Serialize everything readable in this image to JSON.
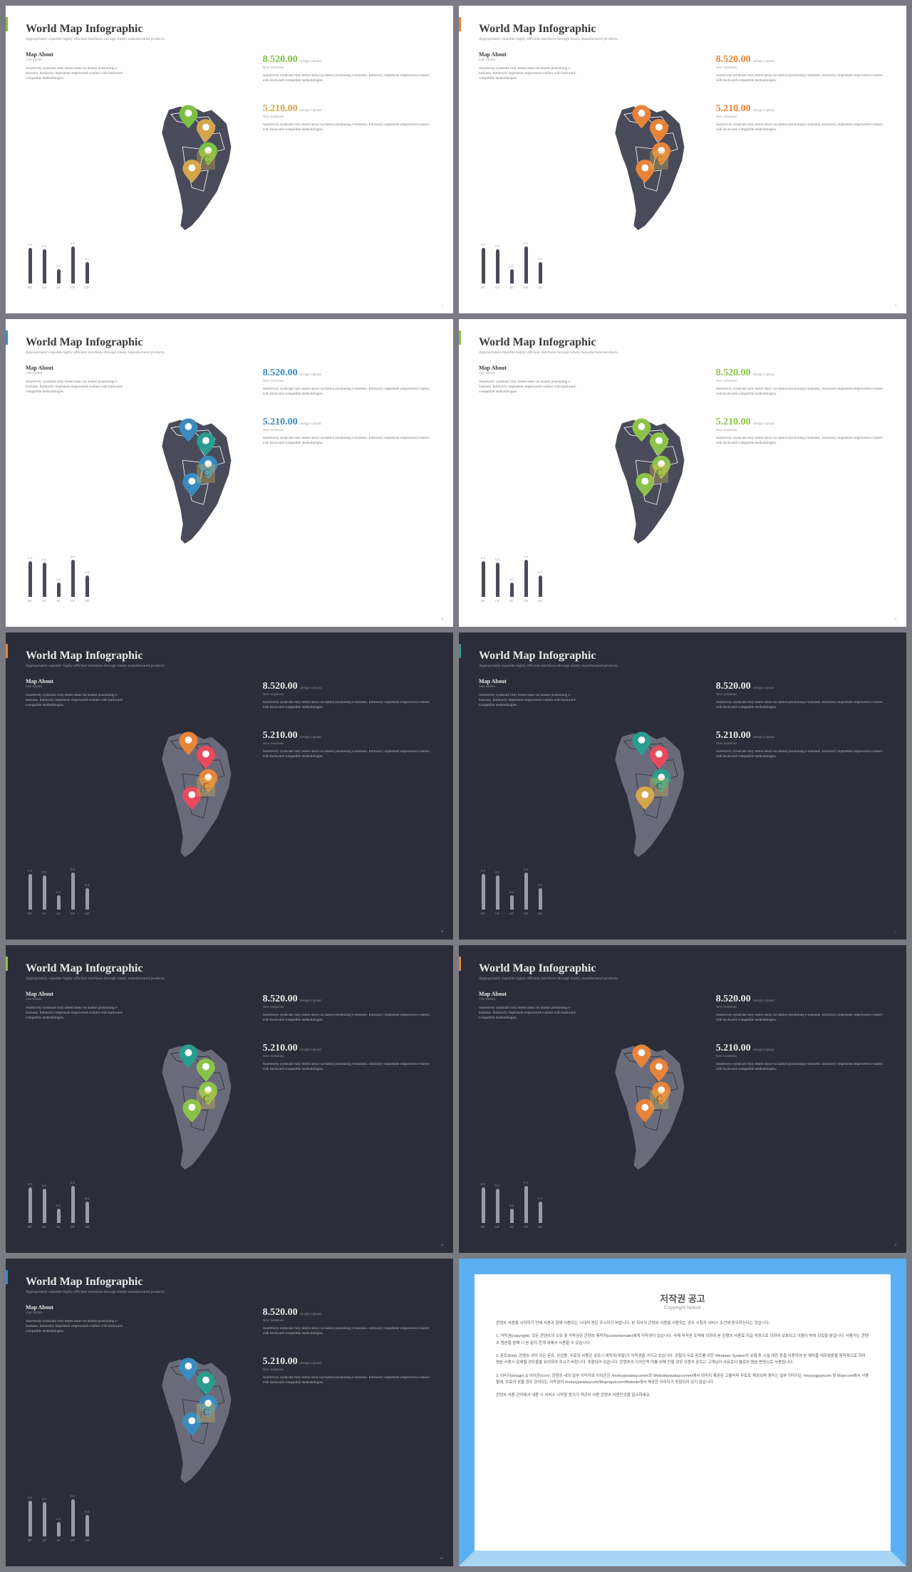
{
  "common": {
    "title": "World Map Infographic",
    "subtitle": "Appropriately expedite highly efficient interfaces through timely manufactured products.",
    "map_about": "Map About",
    "map_about_sub": "One Month",
    "map_desc": "Assertively syndicate fully tested ideas via market positioning e-business. Intrinsicly implement empowered e-tailers with backward-compatible methodologies.",
    "chart": {
      "labels": [
        "HT",
        "GF",
        "KJ",
        "UP",
        "GD"
      ],
      "values": [
        0.5,
        0.5,
        0.2,
        0.5,
        0.3
      ],
      "heights": [
        50,
        48,
        20,
        52,
        30
      ]
    },
    "stat1": {
      "num": "8.520.00",
      "lbl": "Design Upload"
    },
    "stat2": {
      "num": "5.210.00",
      "lbl": "Design Upload"
    },
    "stat_desc": "Assertively syndicate fully tested ideas via market positioning e-business. Intrinsicly implement empowered e-tailers with backward-compatible methodologies.",
    "sub_alt": "New Solutions"
  },
  "slides": [
    {
      "theme": "light",
      "accent": "#7bc043",
      "s1c": "#7bc043",
      "s2c": "#d4a54a",
      "pins": [
        "#7bc043",
        "#d4a54a",
        "#7bc043",
        "#d4a54a"
      ],
      "sub1": "New Solutions",
      "sub2": "New Solutions",
      "page": "5"
    },
    {
      "theme": "light",
      "accent": "#e8833a",
      "s1c": "#e8833a",
      "s2c": "#e8833a",
      "pins": [
        "#e8833a",
        "#e8833a",
        "#e8833a",
        "#e8833a"
      ],
      "sub1": "New Solutions",
      "sub2": "New Solutions",
      "page": "3"
    },
    {
      "theme": "light",
      "accent": "#3a8bbf",
      "s1c": "#3a8bbf",
      "s2c": "#3a8bbf",
      "pins": [
        "#3a8bbf",
        "#2a9d8f",
        "#3a8bbf",
        "#3a8bbf"
      ],
      "sub1": "New Solutions",
      "sub2": "New Solutions",
      "page": "4"
    },
    {
      "theme": "light",
      "accent": "#8bc34a",
      "s1c": "#8bc34a",
      "s2c": "#8bc34a",
      "pins": [
        "#8bc34a",
        "#8bc34a",
        "#8bc34a",
        "#8bc34a"
      ],
      "sub1": "New Solutions",
      "sub2": "New Solutions",
      "page": "3"
    },
    {
      "theme": "dark",
      "accent": "#e8833a",
      "s1c": "#e8e8e8",
      "s2c": "#e8e8e8",
      "pins": [
        "#e8833a",
        "#e84a5f",
        "#e8833a",
        "#e84a5f"
      ],
      "sub1": "New Solutions",
      "sub2": "New Solutions",
      "page": "8"
    },
    {
      "theme": "dark",
      "accent": "#2a9d8f",
      "s1c": "#e8e8e8",
      "s2c": "#e8e8e8",
      "pins": [
        "#2a9d8f",
        "#e84a5f",
        "#2a9d8f",
        "#d4a54a"
      ],
      "sub1": "New Solutions",
      "sub2": "New Solutions",
      "page": "7"
    },
    {
      "theme": "dark",
      "accent": "#8bc34a",
      "s1c": "#e8e8e8",
      "s2c": "#e8e8e8",
      "pins": [
        "#2a9d8f",
        "#8bc34a",
        "#8bc34a",
        "#8bc34a"
      ],
      "sub1": "New Solutions",
      "sub2": "New Solutions",
      "page": "8"
    },
    {
      "theme": "dark",
      "accent": "#e8833a",
      "s1c": "#e8e8e8",
      "s2c": "#e8e8e8",
      "pins": [
        "#e8833a",
        "#e8833a",
        "#e8833a",
        "#e8833a"
      ],
      "sub1": "New Solutions",
      "sub2": "New Solutions",
      "page": "9"
    },
    {
      "theme": "dark",
      "accent": "#3a8bbf",
      "s1c": "#e8e8e8",
      "s2c": "#e8e8e8",
      "pins": [
        "#3a8bbf",
        "#2a9d8f",
        "#3a8bbf",
        "#3a8bbf"
      ],
      "sub1": "New Solutions",
      "sub2": "New Solutions",
      "page": "10"
    }
  ],
  "notice": {
    "title": "저작권 공고",
    "en": "Copyright Notice",
    "p1": "콘텐츠 사용을 시작하기 전에 사용과 함께 사용되는 시대적 원은 주시하기 바랍니다. 본 회사의 콘텐츠 사용을 이용하는 경우 시청자 서비스 조건에 동의하신다는 것입니다.",
    "p2": "1. 저작권(copyright). 모든 콘텐츠의 소유 및 저작권은 콘텐츠 제작자(contentsmate)에게 저작권이 있습니다. 국제 저작권 조약에 의하여 본 콘텐츠 사용료 지급 미정으로 의하여 보호되고 이용이 허여 되었을 뿐입니다. 사용자는 콘텐츠 원본을 분해 시 본 문의 한계 내에서 사용할 수 있습니다.",
    "p3": "2. 폰트(font). 콘텐츠 내의 모든 폰트, 상업용, 무료의 사용은 공모시 제작자(개발)가 저작권을 가지고 있습니다. 관철의 무료 폰트를 위한 Windows System의 유형 등 시설 대한 등을 이용하여 본 제작을 대하였음을 원칙적으로 하여 원본 사용시 문제될 경우들을 유의하여 주시기 바랍니다. 포함되어 있습니다. 콘텐츠의 디자인적 미를 위해 만을 경우 이용자 폰트는 고객님이 사유로서 별로의 원본 변경으로 사용됩니다.",
    "p4": "3. 이미지(image) & 아이콘(icon). 콘텐츠 내의 일부 이미지와 아이콘은 #nobuypixabaycomm과 Websitepixabaycomm)에서 이미지 제공된 고퀄리티 무료로 제공되며 경우는 일부 이미지는 #myungjuprcom 및 Msprcom에서 사용할에, 무료의 성을 경우 관여되는 저작권의 #nobuypixabaycom/Msjongubcom/Website에서 제공한 이미지가 포함되어 있지 않습니다.",
    "p5": "콘텐츠 사용 관리에서 내용 시 서비스 시작함 동의가 약관이 사용 콘텐츠 사용인것을 일소하세요."
  }
}
